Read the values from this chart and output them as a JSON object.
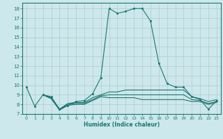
{
  "xlabel": "Humidex (Indice chaleur)",
  "background_color": "#cce8ec",
  "grid_color": "#b8cdd0",
  "line_color": "#1a7870",
  "marker_color": "#1a7870",
  "xlim": [
    -0.5,
    23.5
  ],
  "ylim": [
    7,
    18.6
  ],
  "yticks": [
    7,
    8,
    9,
    10,
    11,
    12,
    13,
    14,
    15,
    16,
    17,
    18
  ],
  "xticks": [
    0,
    1,
    2,
    3,
    4,
    5,
    6,
    7,
    8,
    9,
    10,
    11,
    12,
    13,
    14,
    15,
    16,
    17,
    18,
    19,
    20,
    21,
    22,
    23
  ],
  "lines": [
    {
      "x": [
        0,
        1,
        2,
        3,
        4,
        5,
        6,
        7,
        8,
        9,
        10,
        11,
        12,
        13,
        14,
        15,
        16,
        17,
        18,
        19,
        20,
        21,
        22,
        23
      ],
      "y": [
        9.8,
        7.8,
        9.0,
        8.8,
        7.5,
        7.9,
        8.3,
        8.4,
        9.1,
        10.8,
        18.0,
        17.5,
        17.7,
        18.0,
        18.0,
        16.7,
        12.3,
        10.2,
        9.8,
        9.8,
        8.8,
        8.5,
        7.5,
        8.4
      ],
      "has_markers": true
    },
    {
      "x": [
        2,
        3,
        4,
        5,
        6,
        7,
        8,
        9,
        10,
        11,
        12,
        13,
        14,
        15,
        16,
        17,
        18,
        19,
        20,
        21,
        22,
        23
      ],
      "y": [
        9.0,
        8.7,
        7.5,
        8.1,
        8.2,
        8.2,
        8.7,
        9.0,
        9.3,
        9.3,
        9.5,
        9.5,
        9.5,
        9.5,
        9.5,
        9.5,
        9.5,
        9.5,
        8.8,
        8.6,
        8.3,
        8.5
      ],
      "has_markers": false
    },
    {
      "x": [
        2,
        3,
        4,
        5,
        6,
        7,
        8,
        9,
        10,
        11,
        12,
        13,
        14,
        15,
        16,
        17,
        18,
        19,
        20,
        21,
        22,
        23
      ],
      "y": [
        9.0,
        8.6,
        7.5,
        8.0,
        8.1,
        8.1,
        8.5,
        8.9,
        9.0,
        9.0,
        9.0,
        9.0,
        9.0,
        9.0,
        9.0,
        9.0,
        9.0,
        9.0,
        8.5,
        8.4,
        8.1,
        8.3
      ],
      "has_markers": false
    },
    {
      "x": [
        2,
        3,
        4,
        5,
        6,
        7,
        8,
        9,
        10,
        11,
        12,
        13,
        14,
        15,
        16,
        17,
        18,
        19,
        20,
        21,
        22,
        23
      ],
      "y": [
        9.0,
        8.6,
        7.4,
        7.9,
        8.0,
        8.0,
        8.4,
        8.8,
        8.7,
        8.7,
        8.7,
        8.7,
        8.5,
        8.5,
        8.5,
        8.5,
        8.5,
        8.5,
        8.3,
        8.3,
        8.0,
        8.2
      ],
      "has_markers": false
    }
  ]
}
